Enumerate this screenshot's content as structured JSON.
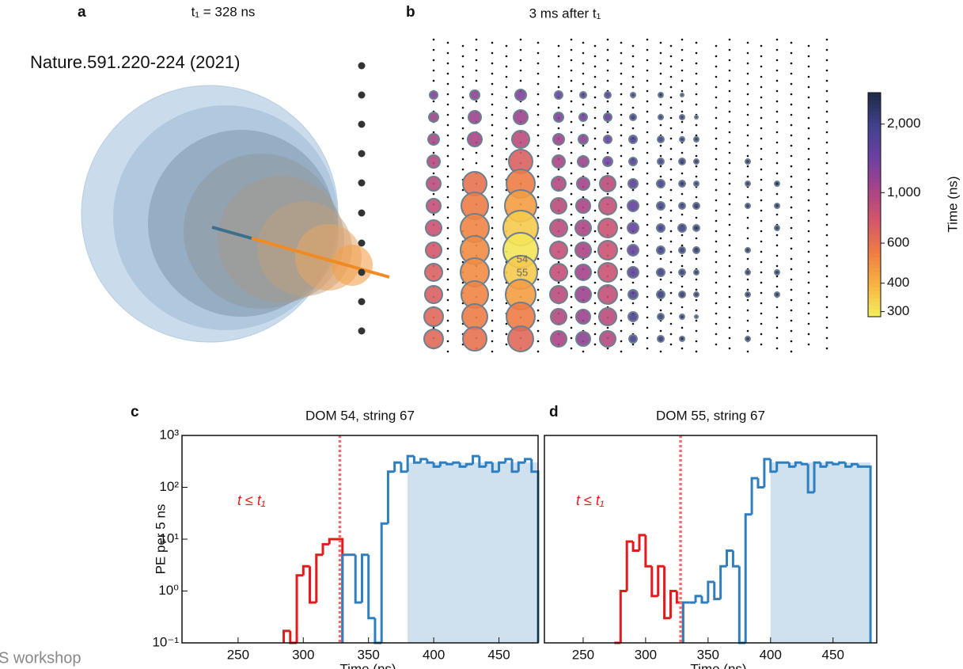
{
  "figure": {
    "citation": "Nature.591.220-224 (2021)",
    "footer": "S workshop",
    "panel_a": {
      "letter": "a",
      "title": "t₁ = 328 ns"
    }
  },
  "chart_data": [
    {
      "type": "bubble",
      "panel": "b",
      "title": "3 ms after t₁",
      "series": [
        {
          "values": [
            1300,
            1100,
            1000,
            950,
            900,
            850,
            800,
            750,
            700,
            700,
            650,
            650
          ],
          "sizes": [
            5,
            6,
            7,
            8,
            9,
            9,
            10,
            10,
            11,
            11,
            12,
            12
          ]
        },
        {
          "values": [
            1200,
            1100,
            1000,
            null,
            600,
            550,
            520,
            500,
            500,
            520,
            550,
            600
          ],
          "sizes": [
            6,
            8,
            9,
            null,
            15,
            17,
            18,
            18,
            18,
            17,
            16,
            15
          ]
        },
        {
          "values": [
            1300,
            1100,
            900,
            700,
            550,
            450,
            350,
            300,
            350,
            450,
            550,
            650
          ],
          "sizes": [
            7,
            9,
            11,
            15,
            18,
            20,
            22,
            22,
            21,
            19,
            18,
            16
          ]
        },
        {
          "values": [
            1500,
            1300,
            1100,
            1000,
            950,
            900,
            900,
            850,
            850,
            900,
            950,
            1000
          ],
          "sizes": [
            5,
            6,
            7,
            8,
            9,
            10,
            11,
            11,
            11,
            11,
            10,
            10
          ]
        },
        {
          "values": [
            1600,
            1400,
            1200,
            1100,
            1050,
            1000,
            1000,
            1000,
            1050,
            1100,
            1100,
            1200
          ],
          "sizes": [
            4,
            5,
            6,
            7,
            8,
            9,
            10,
            10,
            10,
            10,
            9,
            9
          ]
        },
        {
          "values": [
            1800,
            1600,
            1500,
            1400,
            900,
            850,
            800,
            800,
            800,
            850,
            900,
            950
          ],
          "sizes": [
            4,
            5,
            5,
            6,
            10,
            11,
            12,
            12,
            12,
            12,
            11,
            10
          ]
        },
        {
          "values": [
            2000,
            1900,
            1800,
            1700,
            1600,
            1500,
            1500,
            1500,
            1600,
            1700,
            1800,
            1900
          ],
          "sizes": [
            3,
            4,
            5,
            5,
            6,
            7,
            7,
            7,
            7,
            6,
            6,
            5
          ]
        },
        {
          "values": [
            2200,
            2100,
            2000,
            2000,
            1900,
            1900,
            1900,
            2000,
            2000,
            2100,
            2100,
            2200
          ],
          "sizes": [
            3,
            3,
            4,
            4,
            5,
            5,
            5,
            5,
            5,
            5,
            4,
            4
          ]
        },
        {
          "values": [
            2300,
            2200,
            2200,
            2100,
            2100,
            2000,
            2000,
            2100,
            2100,
            2200,
            2200,
            2300
          ],
          "sizes": [
            2,
            3,
            3,
            4,
            4,
            4,
            5,
            4,
            4,
            4,
            3,
            3
          ]
        },
        {
          "values": [
            null,
            2400,
            2300,
            2300,
            2200,
            2200,
            2200,
            2200,
            2300,
            2300,
            2400,
            null
          ],
          "sizes": [
            null,
            2,
            3,
            3,
            3,
            4,
            4,
            4,
            3,
            3,
            2,
            null
          ]
        },
        {
          "values": [
            null,
            null,
            null,
            2400,
            2400,
            2300,
            null,
            2300,
            2400,
            2400,
            null,
            2500
          ],
          "sizes": [
            null,
            null,
            null,
            3,
            3,
            3,
            null,
            3,
            3,
            3,
            null,
            3
          ]
        },
        {
          "values": [
            null,
            null,
            null,
            null,
            2500,
            2400,
            2400,
            null,
            2400,
            2500,
            null,
            null
          ],
          "sizes": [
            null,
            null,
            null,
            null,
            3,
            3,
            3,
            null,
            3,
            3,
            null,
            null
          ]
        }
      ],
      "annotations": [
        "54",
        "55"
      ],
      "colorbar": {
        "label": "Time (ns)",
        "log": true,
        "lim": [
          285,
          2750
        ],
        "ticks": [
          {
            "value": 2000,
            "label": "2,000"
          },
          {
            "value": 1000,
            "label": "1,000"
          },
          600,
          400,
          300
        ],
        "colors": [
          "#f4ef5c",
          "#f7b443",
          "#ef7d45",
          "#d3576a",
          "#a64389",
          "#6c40a2",
          "#40418b",
          "#1c2a48"
        ]
      }
    },
    {
      "type": "histogram",
      "panel": "c",
      "title": "DOM 54, string 67",
      "xlabel": "Time (ns)",
      "ylabel": "PE per 5 ns",
      "log_y": true,
      "xlim": [
        207,
        480
      ],
      "ylim": [
        0.1,
        1000
      ],
      "xticks": [
        250,
        300,
        350,
        400,
        450
      ],
      "yticks": [
        {
          "value": 0.1,
          "label": "10⁻¹"
        },
        {
          "value": 1,
          "label": "10⁰"
        },
        {
          "value": 10,
          "label": "10¹"
        },
        {
          "value": 100,
          "label": "10²"
        },
        {
          "value": 1000,
          "label": "10³"
        }
      ],
      "bins": [
        285,
        290,
        295,
        300,
        305,
        310,
        315,
        320,
        325,
        330,
        335,
        340,
        345,
        350,
        355,
        360,
        365,
        370,
        375,
        380,
        385,
        390,
        395,
        400,
        405,
        410,
        415,
        420,
        425,
        430,
        435,
        440,
        445,
        450,
        455,
        460,
        465,
        470,
        475,
        480
      ],
      "series": [
        {
          "name": "t ≤ t₁",
          "color": "#e41a1c",
          "values": [
            0.17,
            0.1,
            2,
            3,
            0.6,
            5,
            8,
            10,
            10,
            null,
            null,
            null,
            null,
            null,
            null,
            null,
            null,
            null,
            null,
            null,
            null,
            null,
            null,
            null,
            null,
            null,
            null,
            null,
            null,
            null,
            null,
            null,
            null,
            null,
            null,
            null,
            null,
            null,
            null
          ]
        },
        {
          "color": "#2f7fbf",
          "values": [
            null,
            null,
            null,
            null,
            null,
            null,
            null,
            null,
            null,
            5,
            5,
            0.6,
            5,
            0.3,
            0.1,
            20,
            200,
            300,
            200,
            400,
            300,
            350,
            300,
            250,
            300,
            280,
            300,
            250,
            280,
            400,
            250,
            300,
            200,
            300,
            350,
            200,
            300,
            350,
            200
          ]
        }
      ],
      "t1": 328,
      "shade": {
        "x": [
          380,
          480
        ],
        "value": 300,
        "color": "#cfe0ee"
      }
    },
    {
      "type": "histogram",
      "panel": "d",
      "title": "DOM 55, string 67",
      "xlabel": "Time (ns)",
      "log_y": true,
      "xlim": [
        219,
        485
      ],
      "ylim": [
        0.1,
        1000
      ],
      "xticks": [
        250,
        300,
        350,
        400,
        450
      ],
      "bins": [
        275,
        280,
        285,
        290,
        295,
        300,
        305,
        310,
        315,
        320,
        325,
        330,
        335,
        340,
        345,
        350,
        355,
        360,
        365,
        370,
        375,
        380,
        385,
        390,
        395,
        400,
        405,
        410,
        415,
        420,
        425,
        430,
        435,
        440,
        445,
        450,
        455,
        460,
        465,
        470,
        475,
        480
      ],
      "series": [
        {
          "name": "t ≤ t₁",
          "color": "#e41a1c",
          "values": [
            0.1,
            1,
            9,
            6,
            12,
            3,
            0.8,
            3,
            0.3,
            1,
            0.6,
            null,
            null,
            null,
            null,
            null,
            null,
            null,
            null,
            null,
            null,
            null,
            null,
            null,
            null,
            null,
            null,
            null,
            null,
            null,
            null,
            null,
            null,
            null,
            null,
            null,
            null,
            null,
            null,
            null,
            null
          ]
        },
        {
          "color": "#2f7fbf",
          "values": [
            null,
            null,
            null,
            null,
            null,
            null,
            null,
            null,
            null,
            null,
            null,
            0.6,
            0.6,
            0.8,
            0.6,
            1.5,
            0.7,
            3,
            6,
            3,
            0.1,
            30,
            150,
            100,
            350,
            200,
            300,
            300,
            250,
            300,
            280,
            80,
            300,
            250,
            300,
            280,
            300,
            250,
            280,
            250,
            250
          ]
        }
      ],
      "t1": 328,
      "shade": {
        "x": [
          400,
          480
        ],
        "value": 300,
        "color": "#cfe0ee"
      }
    }
  ]
}
